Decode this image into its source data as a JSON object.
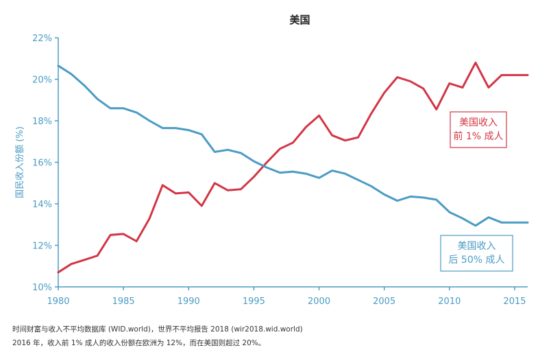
{
  "chart_data": {
    "type": "line",
    "title": "美国",
    "xlabel": "",
    "ylabel": "国民收入份额 (%)",
    "xlim": [
      1980,
      2016
    ],
    "ylim": [
      10,
      22
    ],
    "x_ticks": [
      1980,
      1985,
      1990,
      1995,
      2000,
      2005,
      2010,
      2015
    ],
    "x_tick_labels": [
      "1980",
      "1985",
      "1990",
      "1995",
      "2000",
      "2005",
      "2010",
      "2015"
    ],
    "y_ticks": [
      10,
      12,
      14,
      16,
      18,
      20,
      22
    ],
    "y_tick_labels": [
      "10%",
      "12%",
      "14%",
      "16%",
      "18%",
      "20%",
      "22%"
    ],
    "grid": false,
    "x": [
      1980,
      1981,
      1982,
      1983,
      1984,
      1985,
      1986,
      1987,
      1988,
      1989,
      1990,
      1991,
      1992,
      1993,
      1994,
      1995,
      1996,
      1997,
      1998,
      1999,
      2000,
      2001,
      2002,
      2003,
      2004,
      2005,
      2006,
      2007,
      2008,
      2009,
      2010,
      2011,
      2012,
      2013,
      2014,
      2015,
      2016
    ],
    "series": [
      {
        "name": "美国收入 前 1% 成人",
        "label_lines": [
          "美国收入",
          "前 1% 成人"
        ],
        "color": "#d33545",
        "values": [
          10.7,
          11.1,
          11.3,
          11.5,
          12.5,
          12.55,
          12.2,
          13.3,
          14.9,
          14.5,
          14.55,
          13.9,
          15.0,
          14.65,
          14.7,
          15.3,
          16.0,
          16.65,
          16.95,
          17.7,
          18.25,
          17.3,
          17.05,
          17.2,
          18.35,
          19.35,
          20.1,
          19.9,
          19.55,
          18.55,
          19.8,
          19.6,
          20.8,
          19.6,
          20.2,
          20.2,
          20.2
        ]
      },
      {
        "name": "美国收入 后 50% 成人",
        "label_lines": [
          "美国收入",
          "后 50% 成人"
        ],
        "color": "#4a9bc4",
        "values": [
          20.65,
          20.25,
          19.7,
          19.05,
          18.6,
          18.6,
          18.4,
          18.0,
          17.65,
          17.65,
          17.55,
          17.35,
          16.5,
          16.6,
          16.45,
          16.05,
          15.75,
          15.5,
          15.55,
          15.45,
          15.25,
          15.6,
          15.45,
          15.15,
          14.85,
          14.45,
          14.15,
          14.35,
          14.3,
          14.2,
          13.6,
          13.3,
          12.95,
          13.35,
          13.1,
          13.1,
          13.1
        ]
      }
    ]
  },
  "notes": {
    "line1": "时间财富与收入不平均数据库 (WID.world)，世界不平均报告 2018 (wir2018.wid.world)",
    "line2": "2016 年，收入前 1% 成人的收入份额在欧洲为 12%，而在美国则超过 20%。"
  }
}
